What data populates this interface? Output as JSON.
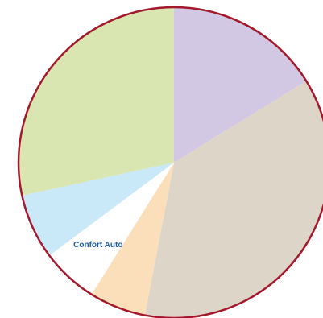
{
  "chart_data": {
    "type": "pie",
    "slices": [
      {
        "label": "",
        "value": 16.2,
        "color": "#d2c8e4"
      },
      {
        "label": "",
        "value": 36.8,
        "color": "#ddd5c8"
      },
      {
        "label": "",
        "value": 5.9,
        "color": "#fadfba"
      },
      {
        "label": "Confort Auto",
        "value": 5.9,
        "color": "#ffffff"
      },
      {
        "label": "",
        "value": 6.8,
        "color": "#c9e8f8"
      },
      {
        "label": "",
        "value": 28.4,
        "color": "#d9e6b1"
      }
    ],
    "outline_color": "#a3182b",
    "start_angle": "top",
    "direction": "clockwise"
  }
}
